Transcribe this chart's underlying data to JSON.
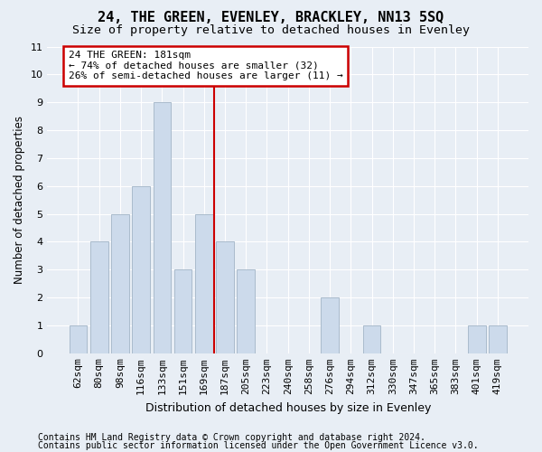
{
  "title1": "24, THE GREEN, EVENLEY, BRACKLEY, NN13 5SQ",
  "title2": "Size of property relative to detached houses in Evenley",
  "xlabel": "Distribution of detached houses by size in Evenley",
  "ylabel": "Number of detached properties",
  "categories": [
    "62sqm",
    "80sqm",
    "98sqm",
    "116sqm",
    "133sqm",
    "151sqm",
    "169sqm",
    "187sqm",
    "205sqm",
    "223sqm",
    "240sqm",
    "258sqm",
    "276sqm",
    "294sqm",
    "312sqm",
    "330sqm",
    "347sqm",
    "365sqm",
    "383sqm",
    "401sqm",
    "419sqm"
  ],
  "values": [
    1,
    4,
    5,
    6,
    9,
    3,
    5,
    4,
    3,
    0,
    0,
    0,
    2,
    0,
    1,
    0,
    0,
    0,
    0,
    1,
    1
  ],
  "bar_color": "#ccdaeb",
  "bar_edgecolor": "#aabbcc",
  "vline_x_index": 6.5,
  "vline_color": "#cc0000",
  "annotation_line1": "24 THE GREEN: 181sqm",
  "annotation_line2": "← 74% of detached houses are smaller (32)",
  "annotation_line3": "26% of semi-detached houses are larger (11) →",
  "annotation_box_edgecolor": "#cc0000",
  "ylim": [
    0,
    11
  ],
  "yticks": [
    0,
    1,
    2,
    3,
    4,
    5,
    6,
    7,
    8,
    9,
    10,
    11
  ],
  "footer1": "Contains HM Land Registry data © Crown copyright and database right 2024.",
  "footer2": "Contains public sector information licensed under the Open Government Licence v3.0.",
  "background_color": "#e8eef5",
  "plot_background": "#e8eef5",
  "title1_fontsize": 11,
  "title2_fontsize": 9.5,
  "xlabel_fontsize": 9,
  "ylabel_fontsize": 8.5,
  "tick_fontsize": 8,
  "footer_fontsize": 7,
  "annotation_fontsize": 8
}
